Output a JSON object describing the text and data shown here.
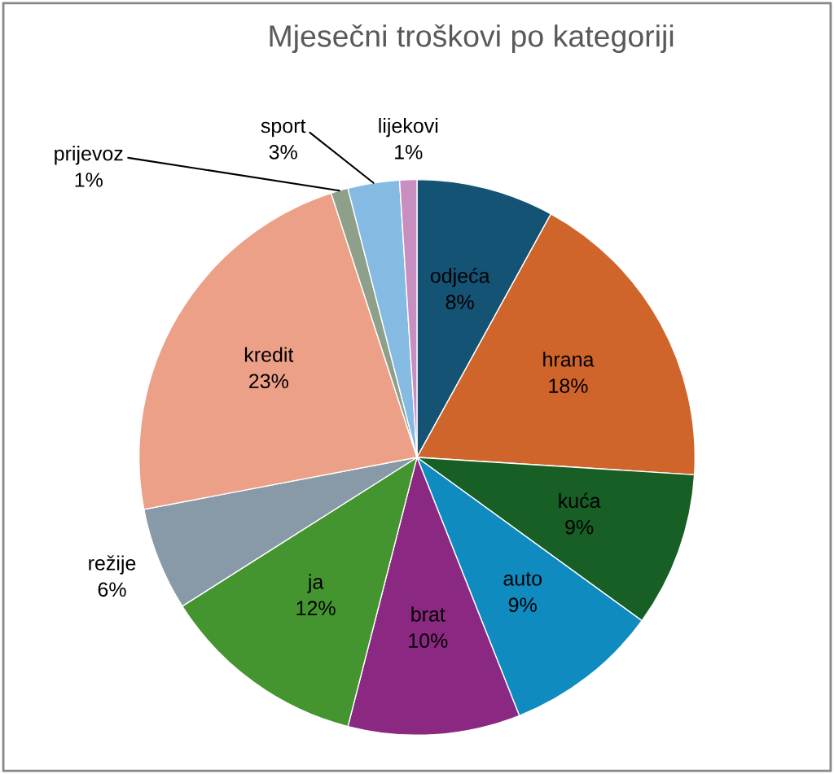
{
  "chart_data": {
    "type": "pie",
    "title": "Mjesečni troškovi po kategoriji",
    "categories": [
      "odjeća",
      "hrana",
      "kuća",
      "auto",
      "brat",
      "ja",
      "režije",
      "kredit",
      "prijevoz",
      "sport",
      "lijekovi"
    ],
    "values": [
      8,
      18,
      9,
      9,
      10,
      12,
      6,
      23,
      1,
      3,
      1
    ],
    "colors": [
      "#145374",
      "#d0652c",
      "#175f24",
      "#0f8bc0",
      "#8b2882",
      "#44952f",
      "#8899a8",
      "#eca088",
      "#8ea08a",
      "#85bae3",
      "#c78ebf"
    ],
    "value_labels": [
      "8%",
      "18%",
      "9%",
      "9%",
      "10%",
      "12%",
      "6%",
      "23%",
      "1%",
      "3%",
      "1%"
    ],
    "legend": false
  }
}
